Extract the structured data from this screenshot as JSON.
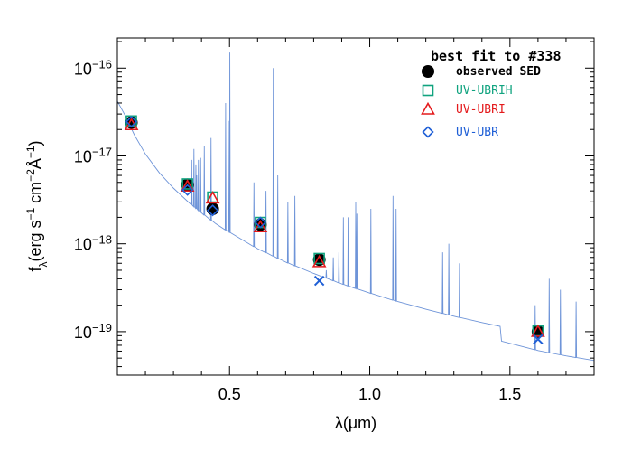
{
  "chart_data": {
    "type": "scatter",
    "title": "",
    "xlabel": "λ(μm)",
    "ylabel": "f_λ(erg s^-1 cm^-2 Å^-1)",
    "xlim": [
      0.1,
      1.8
    ],
    "ylim": [
      3.2e-20,
      2.2e-16
    ],
    "yscale": "log",
    "x_ticks": [
      0.5,
      1.0,
      1.5
    ],
    "x_tick_labels": [
      "0.5",
      "1.0",
      "1.5"
    ],
    "y_ticks": [
      1e-19,
      1e-18,
      1e-17,
      1e-16
    ],
    "y_tick_labels": [
      "10−19",
      "10−18",
      "10−17",
      "10−16"
    ],
    "legend": {
      "title": "best fit to #338",
      "position": "top-right",
      "entries": [
        {
          "label": "observed SED",
          "marker": "filled-circle",
          "color": "#000000"
        },
        {
          "label": "UV-UBRIH",
          "marker": "square",
          "color": "#10a37f"
        },
        {
          "label": "UV-UBRI",
          "marker": "triangle",
          "color": "#e41a1c"
        },
        {
          "label": "UV-UBR",
          "marker": "diamond",
          "color": "#1f5fd6"
        }
      ]
    },
    "series": [
      {
        "name": "observed SED",
        "marker": "filled-circle",
        "color": "#000000",
        "x": [
          0.15,
          0.35,
          0.44,
          0.61,
          0.82,
          1.6
        ],
        "y": [
          2.4e-17,
          4.7e-18,
          2.5e-18,
          1.65e-18,
          6.6e-19,
          1e-19
        ]
      },
      {
        "name": "UV-UBRIH",
        "marker": "square",
        "color": "#10a37f",
        "x": [
          0.15,
          0.35,
          0.44,
          0.61,
          0.82,
          1.6
        ],
        "y": [
          2.5e-17,
          4.8e-18,
          3.4e-18,
          1.75e-18,
          6.8e-19,
          1.02e-19
        ]
      },
      {
        "name": "UV-UBRI",
        "marker": "triangle",
        "color": "#e41a1c",
        "x": [
          0.15,
          0.35,
          0.44,
          0.61,
          0.82,
          1.6
        ],
        "y": [
          2.25e-17,
          4.5e-18,
          3.3e-18,
          1.55e-18,
          6.2e-19,
          1e-19
        ]
      },
      {
        "name": "UV-UBR",
        "marker": "diamond",
        "color": "#1f5fd6",
        "x": [
          0.15,
          0.35,
          0.44,
          0.61
        ],
        "y": [
          2.45e-17,
          4.1e-18,
          2.4e-18,
          1.75e-18
        ]
      },
      {
        "name": "",
        "marker": "x",
        "color": "#1f5fd6",
        "x": [
          0.82,
          1.6
        ],
        "y": [
          3.8e-19,
          8.2e-20
        ]
      }
    ],
    "spectrum": {
      "color": "#6e94d8",
      "continuum": [
        [
          0.1,
          4.2e-17
        ],
        [
          0.13,
          2.8e-17
        ],
        [
          0.16,
          1.75e-17
        ],
        [
          0.2,
          1.05e-17
        ],
        [
          0.25,
          6.4e-18
        ],
        [
          0.3,
          4.3e-18
        ],
        [
          0.35,
          3.05e-18
        ],
        [
          0.4,
          2.25e-18
        ],
        [
          0.45,
          1.7e-18
        ],
        [
          0.5,
          1.35e-18
        ],
        [
          0.6,
          8.8e-19
        ],
        [
          0.7,
          6.2e-19
        ],
        [
          0.8,
          4.6e-19
        ],
        [
          0.9,
          3.5e-19
        ],
        [
          1.0,
          2.75e-19
        ],
        [
          1.1,
          2.2e-19
        ],
        [
          1.2,
          1.8e-19
        ],
        [
          1.3,
          1.5e-19
        ],
        [
          1.4,
          1.27e-19
        ],
        [
          1.465,
          1.15e-19
        ],
        [
          1.47,
          7.8e-20
        ],
        [
          1.55,
          6.7e-20
        ],
        [
          1.6,
          6.1e-20
        ],
        [
          1.7,
          5.3e-20
        ],
        [
          1.8,
          4.7e-20
        ]
      ],
      "lines": [
        [
          0.365,
          9e-18
        ],
        [
          0.373,
          1.2e-17
        ],
        [
          0.38,
          8e-18
        ],
        [
          0.383,
          6e-18
        ],
        [
          0.389,
          9e-18
        ],
        [
          0.397,
          9.5e-18
        ],
        [
          0.41,
          1.3e-17
        ],
        [
          0.434,
          1.6e-17
        ],
        [
          0.486,
          4e-17
        ],
        [
          0.496,
          2.5e-17
        ],
        [
          0.501,
          1.5e-16
        ],
        [
          0.587,
          5e-18
        ],
        [
          0.63,
          4e-18
        ],
        [
          0.656,
          1e-16
        ],
        [
          0.672,
          6e-18
        ],
        [
          0.708,
          3e-18
        ],
        [
          0.733,
          3.5e-18
        ],
        [
          0.845,
          5e-19
        ],
        [
          0.87,
          7e-19
        ],
        [
          0.89,
          8e-19
        ],
        [
          0.906,
          2e-18
        ],
        [
          0.923,
          2e-18
        ],
        [
          0.95,
          3e-18
        ],
        [
          0.954,
          2.2e-18
        ],
        [
          1.004,
          2.5e-18
        ],
        [
          1.083,
          3.5e-18
        ],
        [
          1.094,
          2.5e-18
        ],
        [
          1.26,
          8e-19
        ],
        [
          1.282,
          1e-18
        ],
        [
          1.32,
          6e-19
        ],
        [
          1.59,
          2e-19
        ],
        [
          1.64,
          4e-19
        ],
        [
          1.68,
          3e-19
        ],
        [
          1.736,
          2.2e-19
        ]
      ]
    }
  }
}
